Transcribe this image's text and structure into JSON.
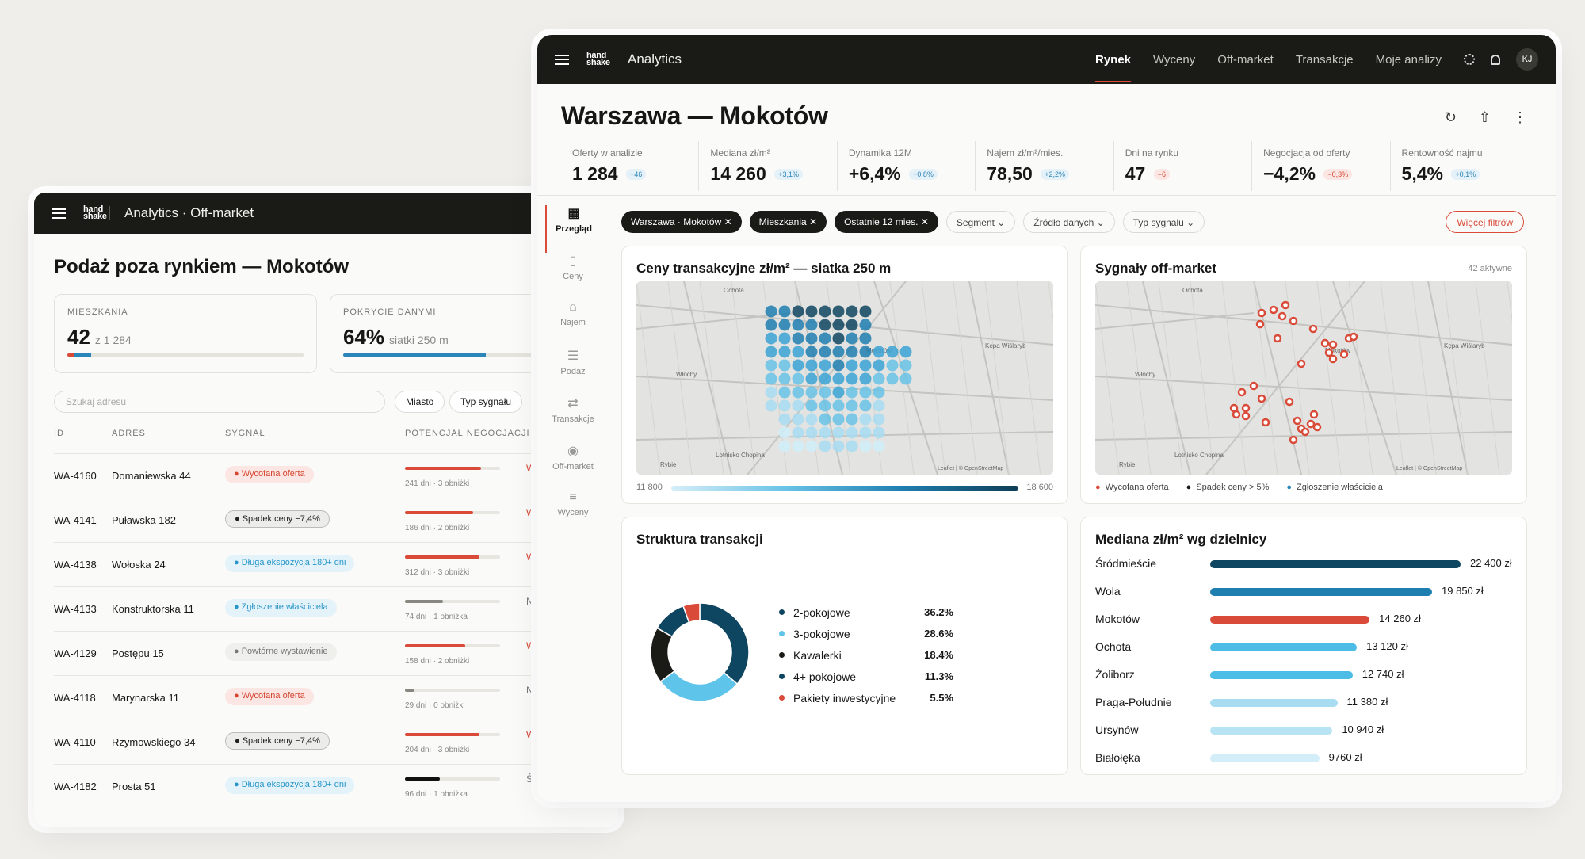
{
  "back": {
    "logo": "hand\nshake",
    "app_title": "Analytics · Off-market",
    "title": "Podaż poza rynkiem — Mokotów",
    "cards": [
      {
        "label": "MIESZKANIA",
        "value": "42",
        "sub": "z 1 284",
        "progress": 0.1,
        "colors": [
          "#d94a38",
          "#2a86b8"
        ]
      },
      {
        "label": "POKRYCIE DANYMI",
        "value": "64%",
        "sub": "siatki 250 m",
        "progress": 0.64
      }
    ],
    "search_placeholder": "Szukaj adresu",
    "filters": [
      "Miasto",
      "Typ sygnału"
    ],
    "columns": [
      "ID",
      "ADRES",
      "SYGNAŁ",
      "POTENCJAŁ NEGOCJACJI"
    ],
    "rows": [
      {
        "id": "WA-4160",
        "address": "Domaniewska 44",
        "signal": "Wycofana oferta",
        "signal_type": "red",
        "bar": 0.8,
        "bar_color": "#d94a38",
        "meta": "241 dni · 3 obniżki",
        "potential": "Wyso"
      },
      {
        "id": "WA-4141",
        "address": "Puławska 182",
        "signal": "Spadek ceny −7,4%",
        "signal_type": "dark",
        "bar": 0.72,
        "bar_color": "#d94a38",
        "meta": "186 dni · 2 obniżki",
        "potential": "Wyso"
      },
      {
        "id": "WA-4138",
        "address": "Wołoska 24",
        "signal": "Długa ekspozycja 180+ dni",
        "signal_type": "blue",
        "bar": 0.78,
        "bar_color": "#d94a38",
        "meta": "312 dni · 3 obniżki",
        "potential": "Wyso"
      },
      {
        "id": "WA-4133",
        "address": "Konstruktorska 11",
        "signal": "Zgłoszenie właściciela",
        "signal_type": "blue",
        "bar": 0.4,
        "bar_color": "#888880",
        "meta": "74 dni · 1 obniżka",
        "potential": "Nis"
      },
      {
        "id": "WA-4129",
        "address": "Postępu 15",
        "signal": "Powtórne wystawienie",
        "signal_type": "gray",
        "bar": 0.63,
        "bar_color": "#d94a38",
        "meta": "158 dni · 2 obniżki",
        "potential": "Wyso"
      },
      {
        "id": "WA-4118",
        "address": "Marynarska 11",
        "signal": "Wycofana oferta",
        "signal_type": "red",
        "bar": 0.1,
        "bar_color": "#888880",
        "meta": "29 dni · 0 obniżki",
        "potential": "Nis"
      },
      {
        "id": "WA-4110",
        "address": "Rzymowskiego 34",
        "signal": "Spadek ceny −7,4%",
        "signal_type": "dark",
        "bar": 0.78,
        "bar_color": "#d94a38",
        "meta": "204 dni · 3 obniżki",
        "potential": "Wyso"
      },
      {
        "id": "WA-4182",
        "address": "Prosta 51",
        "signal": "Długa ekspozycja 180+ dni",
        "signal_type": "blue",
        "bar": 0.37,
        "bar_color": "#111111",
        "meta": "96 dni · 1 obniżka",
        "potential": "Śred"
      }
    ]
  },
  "front": {
    "logo": "hand\nshake",
    "app_title": "Analytics",
    "nav": [
      "Rynek",
      "Wyceny",
      "Off-market",
      "Transakcje",
      "Moje analizy"
    ],
    "avatar": "KJ",
    "title": "Warszawa — Mokotów",
    "kpis": [
      {
        "label": "Oferty w analizie",
        "value": "1 284",
        "delta": "+46",
        "kind": "pos"
      },
      {
        "label": "Mediana zł/m²",
        "value": "14 260",
        "delta": "+3,1%",
        "kind": "pos"
      },
      {
        "label": "Dynamika 12M",
        "value": "+6,4%",
        "delta": "+0,8%",
        "kind": "pos"
      },
      {
        "label": "Najem zł/m²/mies.",
        "value": "78,50",
        "delta": "+2,2%",
        "kind": "pos"
      },
      {
        "label": "Dni na rynku",
        "value": "47",
        "delta": "−6",
        "kind": "neg"
      },
      {
        "label": "Negocjacja od oferty",
        "value": "−4,2%",
        "delta": "−0,3%",
        "kind": "neg"
      },
      {
        "label": "Rentowność najmu",
        "value": "5,4%",
        "delta": "+0,1%",
        "kind": "pos"
      }
    ],
    "sidebar": [
      "Przegląd",
      "Ceny",
      "Najem",
      "Podaż",
      "Transakcje",
      "Off-market",
      "Wyceny"
    ],
    "chips": [
      {
        "label": "Warszawa · Mokotów",
        "dark": true
      },
      {
        "label": "Mieszkania",
        "dark": true
      },
      {
        "label": "Ostatnie 12 mies.",
        "dark": true
      },
      {
        "label": "Segment",
        "dark": false
      },
      {
        "label": "Źródło danych",
        "dark": false
      },
      {
        "label": "Typ sygnału",
        "dark": false
      }
    ],
    "more_filters": "Więcej filtrów",
    "heatmap": {
      "title": "Ceny transakcyjne zł/m² — siatka 250 m",
      "min": "11 800",
      "max": "18 600"
    },
    "signals": {
      "title": "Sygnały off-market",
      "count": "42 aktywne",
      "legend": [
        {
          "label": "Wycofana oferta",
          "color": "#d94a38"
        },
        {
          "label": "Spadek ceny > 5%",
          "color": "#1a1a17"
        },
        {
          "label": "Zgłoszenie właściciela",
          "color": "#2a86b8"
        }
      ]
    },
    "map_labels": [
      "Ochota",
      "Mokotów",
      "Włochy",
      "Kępa Wiślaryb",
      "Rybie",
      "Lotnisko Chopina",
      "Leaflet | © OpenStreetMap"
    ],
    "structure": {
      "title": "Struktura transakcji"
    },
    "districts": {
      "title": "Mediana zł/m² wg dzielnicy"
    }
  },
  "chart_data": [
    {
      "type": "pie",
      "title": "Struktura transakcji",
      "categories": [
        "2-pokojowe",
        "3-pokojowe",
        "Kawalerki",
        "4+ pokojowe",
        "Pakiety inwestycyjne"
      ],
      "values": [
        36.2,
        28.6,
        18.4,
        11.3,
        5.5
      ],
      "labels": [
        "36.2%",
        "28.6%",
        "18.4%",
        "11.3%",
        "5.5%"
      ],
      "colors": [
        "#0e4560",
        "#5fc4ea",
        "#1a1a17",
        "#0e4560",
        "#d94a38"
      ],
      "legend": "right"
    },
    {
      "type": "bar",
      "title": "Mediana zł/m² wg dzielnicy",
      "categories": [
        "Śródmieście",
        "Wola",
        "Mokotów",
        "Ochota",
        "Żoliborz",
        "Praga-Południe",
        "Ursynów",
        "Białołęka"
      ],
      "values": [
        22400,
        19850,
        14260,
        13120,
        12740,
        11380,
        10940,
        9760
      ],
      "labels": [
        "22 400 zł",
        "19 850 zł",
        "14 260 zł",
        "13 120 zł",
        "12 740 zł",
        "11 380 zł",
        "10 940 zł",
        "9760 zł"
      ],
      "colors": [
        "#0e4560",
        "#1f7eb0",
        "#d94a38",
        "#4dbde6",
        "#4dbde6",
        "#a8dcf0",
        "#b8e3f3",
        "#d3eef8"
      ]
    }
  ]
}
